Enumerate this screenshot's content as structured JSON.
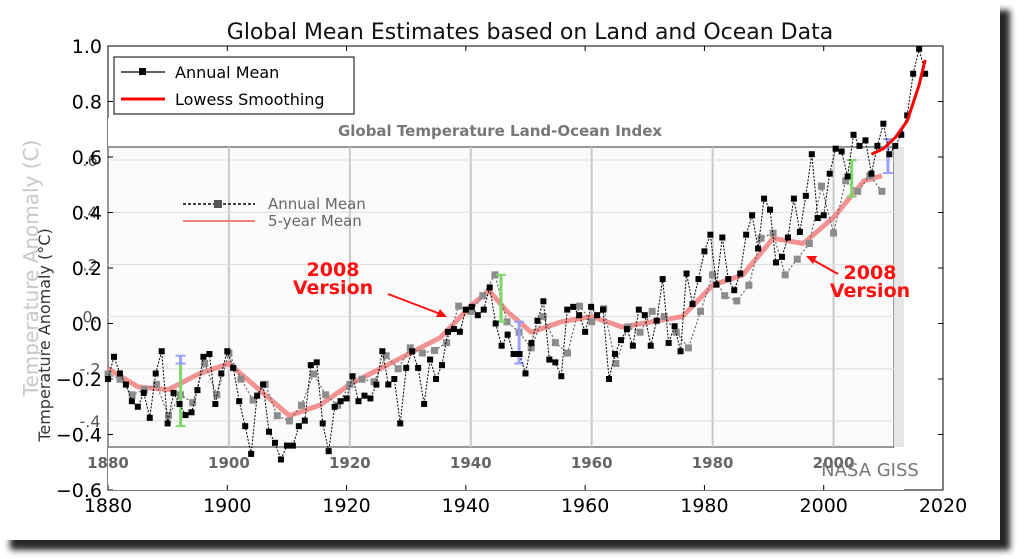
{
  "chart_data": [
    {
      "type": "line",
      "title": "Global Mean Estimates based on Land and Ocean Data",
      "ylabel": "Temperature Anomaly (C)",
      "xlim": [
        1880,
        2020
      ],
      "ylim": [
        -0.6,
        1.0
      ],
      "x_ticks": [
        "1880",
        "1900",
        "1920",
        "1940",
        "1960",
        "1980",
        "2000",
        "2020"
      ],
      "y_ticks": [
        "−0.6",
        "−0.4",
        "−0.2",
        "0.0",
        "0.2",
        "0.4",
        "0.6",
        "0.8",
        "1.0"
      ],
      "legend_position": "top-left",
      "series": [
        {
          "name": "Annual Mean",
          "color": "#000000",
          "x": [
            1880,
            1881,
            1882,
            1883,
            1884,
            1885,
            1886,
            1887,
            1888,
            1889,
            1890,
            1891,
            1892,
            1893,
            1894,
            1895,
            1896,
            1897,
            1898,
            1899,
            1900,
            1901,
            1902,
            1903,
            1904,
            1905,
            1906,
            1907,
            1908,
            1909,
            1910,
            1911,
            1912,
            1913,
            1914,
            1915,
            1916,
            1917,
            1918,
            1919,
            1920,
            1921,
            1922,
            1923,
            1924,
            1925,
            1926,
            1927,
            1928,
            1929,
            1930,
            1931,
            1932,
            1933,
            1934,
            1935,
            1936,
            1937,
            1938,
            1939,
            1940,
            1941,
            1942,
            1943,
            1944,
            1945,
            1946,
            1947,
            1948,
            1949,
            1950,
            1951,
            1952,
            1953,
            1954,
            1955,
            1956,
            1957,
            1958,
            1959,
            1960,
            1961,
            1962,
            1963,
            1964,
            1965,
            1966,
            1967,
            1968,
            1969,
            1970,
            1971,
            1972,
            1973,
            1974,
            1975,
            1976,
            1977,
            1978,
            1979,
            1980,
            1981,
            1982,
            1983,
            1984,
            1985,
            1986,
            1987,
            1988,
            1989,
            1990,
            1991,
            1992,
            1993,
            1994,
            1995,
            1996,
            1997,
            1998,
            1999,
            2000,
            2001,
            2002,
            2003,
            2004,
            2005,
            2006,
            2007,
            2008,
            2009,
            2010,
            2011,
            2012,
            2013,
            2014,
            2015,
            2016,
            2017
          ],
          "values": [
            -0.2,
            -0.12,
            -0.18,
            -0.22,
            -0.28,
            -0.3,
            -0.25,
            -0.34,
            -0.18,
            -0.1,
            -0.36,
            -0.25,
            -0.29,
            -0.33,
            -0.32,
            -0.24,
            -0.12,
            -0.11,
            -0.29,
            -0.18,
            -0.1,
            -0.16,
            -0.28,
            -0.37,
            -0.47,
            -0.26,
            -0.22,
            -0.39,
            -0.43,
            -0.49,
            -0.44,
            -0.44,
            -0.37,
            -0.35,
            -0.15,
            -0.14,
            -0.36,
            -0.46,
            -0.3,
            -0.28,
            -0.27,
            -0.19,
            -0.28,
            -0.26,
            -0.27,
            -0.22,
            -0.1,
            -0.22,
            -0.2,
            -0.36,
            -0.16,
            -0.1,
            -0.16,
            -0.29,
            -0.13,
            -0.2,
            -0.15,
            -0.03,
            -0.02,
            -0.03,
            0.05,
            0.06,
            0.03,
            0.05,
            0.13,
            0.0,
            -0.08,
            -0.04,
            -0.11,
            -0.11,
            -0.18,
            -0.07,
            0.01,
            0.08,
            -0.13,
            -0.14,
            -0.19,
            0.05,
            0.06,
            0.03,
            -0.03,
            0.06,
            0.03,
            0.05,
            -0.2,
            -0.11,
            -0.06,
            -0.02,
            -0.08,
            0.05,
            0.03,
            -0.08,
            0.01,
            0.16,
            -0.07,
            -0.01,
            -0.1,
            0.18,
            0.07,
            0.16,
            0.26,
            0.32,
            0.14,
            0.31,
            0.16,
            0.12,
            0.18,
            0.32,
            0.39,
            0.27,
            0.45,
            0.41,
            0.22,
            0.24,
            0.31,
            0.45,
            0.33,
            0.46,
            0.61,
            0.38,
            0.39,
            0.54,
            0.63,
            0.62,
            0.53,
            0.68,
            0.64,
            0.66,
            0.54,
            0.64,
            0.72,
            0.61,
            0.64,
            0.68,
            0.75,
            0.9,
            0.99,
            0.9
          ]
        },
        {
          "name": "Lowess Smoothing",
          "color": "#ff0000",
          "x": [
            2008,
            2010,
            2012,
            2014,
            2016,
            2017
          ],
          "values": [
            0.61,
            0.63,
            0.67,
            0.73,
            0.86,
            0.95
          ]
        }
      ]
    },
    {
      "type": "line",
      "title": "Global Temperature Land-Ocean Index",
      "ylabel": "Temperature Anomaly (°C)",
      "xlim": [
        1880,
        2010
      ],
      "ylim": [
        -0.5,
        0.65
      ],
      "x_ticks": [
        "1880",
        "1900",
        "1920",
        "1940",
        "1960",
        "1980",
        "2000"
      ],
      "y_ticks": [
        ".6",
        ".4",
        ".2",
        "0.",
        "-.2",
        "-.4"
      ],
      "legend_position": "top-left",
      "series": [
        {
          "name": "Annual Mean",
          "color": "#444444",
          "x": [
            1880,
            1882,
            1884,
            1886,
            1888,
            1890,
            1892,
            1894,
            1896,
            1898,
            1900,
            1902,
            1904,
            1906,
            1908,
            1910,
            1912,
            1914,
            1916,
            1918,
            1920,
            1922,
            1924,
            1926,
            1928,
            1930,
            1932,
            1934,
            1936,
            1938,
            1940,
            1942,
            1944,
            1946,
            1948,
            1950,
            1952,
            1954,
            1956,
            1958,
            1960,
            1962,
            1964,
            1966,
            1968,
            1970,
            1972,
            1974,
            1976,
            1978,
            1980,
            1982,
            1984,
            1986,
            1988,
            1990,
            1992,
            1994,
            1996,
            1998,
            2000,
            2002,
            2004,
            2006,
            2008
          ],
          "values": [
            -0.22,
            -0.24,
            -0.3,
            -0.28,
            -0.26,
            -0.38,
            -0.3,
            -0.33,
            -0.18,
            -0.3,
            -0.14,
            -0.24,
            -0.32,
            -0.26,
            -0.38,
            -0.4,
            -0.34,
            -0.22,
            -0.3,
            -0.34,
            -0.26,
            -0.24,
            -0.25,
            -0.15,
            -0.2,
            -0.12,
            -0.14,
            -0.13,
            -0.1,
            0.04,
            0.02,
            0.08,
            0.16,
            -0.02,
            -0.06,
            -0.12,
            0.0,
            -0.1,
            -0.14,
            0.04,
            -0.02,
            0.03,
            -0.18,
            -0.04,
            -0.06,
            0.02,
            0.0,
            -0.06,
            -0.12,
            0.02,
            0.16,
            0.08,
            0.06,
            0.12,
            0.3,
            0.32,
            0.16,
            0.22,
            0.28,
            0.5,
            0.32,
            0.52,
            0.48,
            0.54,
            0.48
          ]
        },
        {
          "name": "5-year Mean",
          "color": "#f08080",
          "x": [
            1880,
            1885,
            1890,
            1895,
            1900,
            1905,
            1910,
            1915,
            1920,
            1925,
            1930,
            1935,
            1940,
            1943,
            1946,
            1950,
            1955,
            1960,
            1965,
            1970,
            1975,
            1980,
            1985,
            1990,
            1995,
            2000,
            2005,
            2008
          ],
          "values": [
            -0.2,
            -0.27,
            -0.28,
            -0.22,
            -0.18,
            -0.28,
            -0.38,
            -0.34,
            -0.26,
            -0.2,
            -0.14,
            -0.08,
            0.04,
            0.1,
            0.02,
            -0.06,
            -0.02,
            0.0,
            -0.04,
            -0.02,
            0.0,
            0.12,
            0.16,
            0.3,
            0.28,
            0.38,
            0.52,
            0.54
          ]
        }
      ]
    }
  ],
  "overlay": {
    "version_label_line1": "2008",
    "version_label_line2": "Version",
    "source_credit": "NASA GISS"
  }
}
